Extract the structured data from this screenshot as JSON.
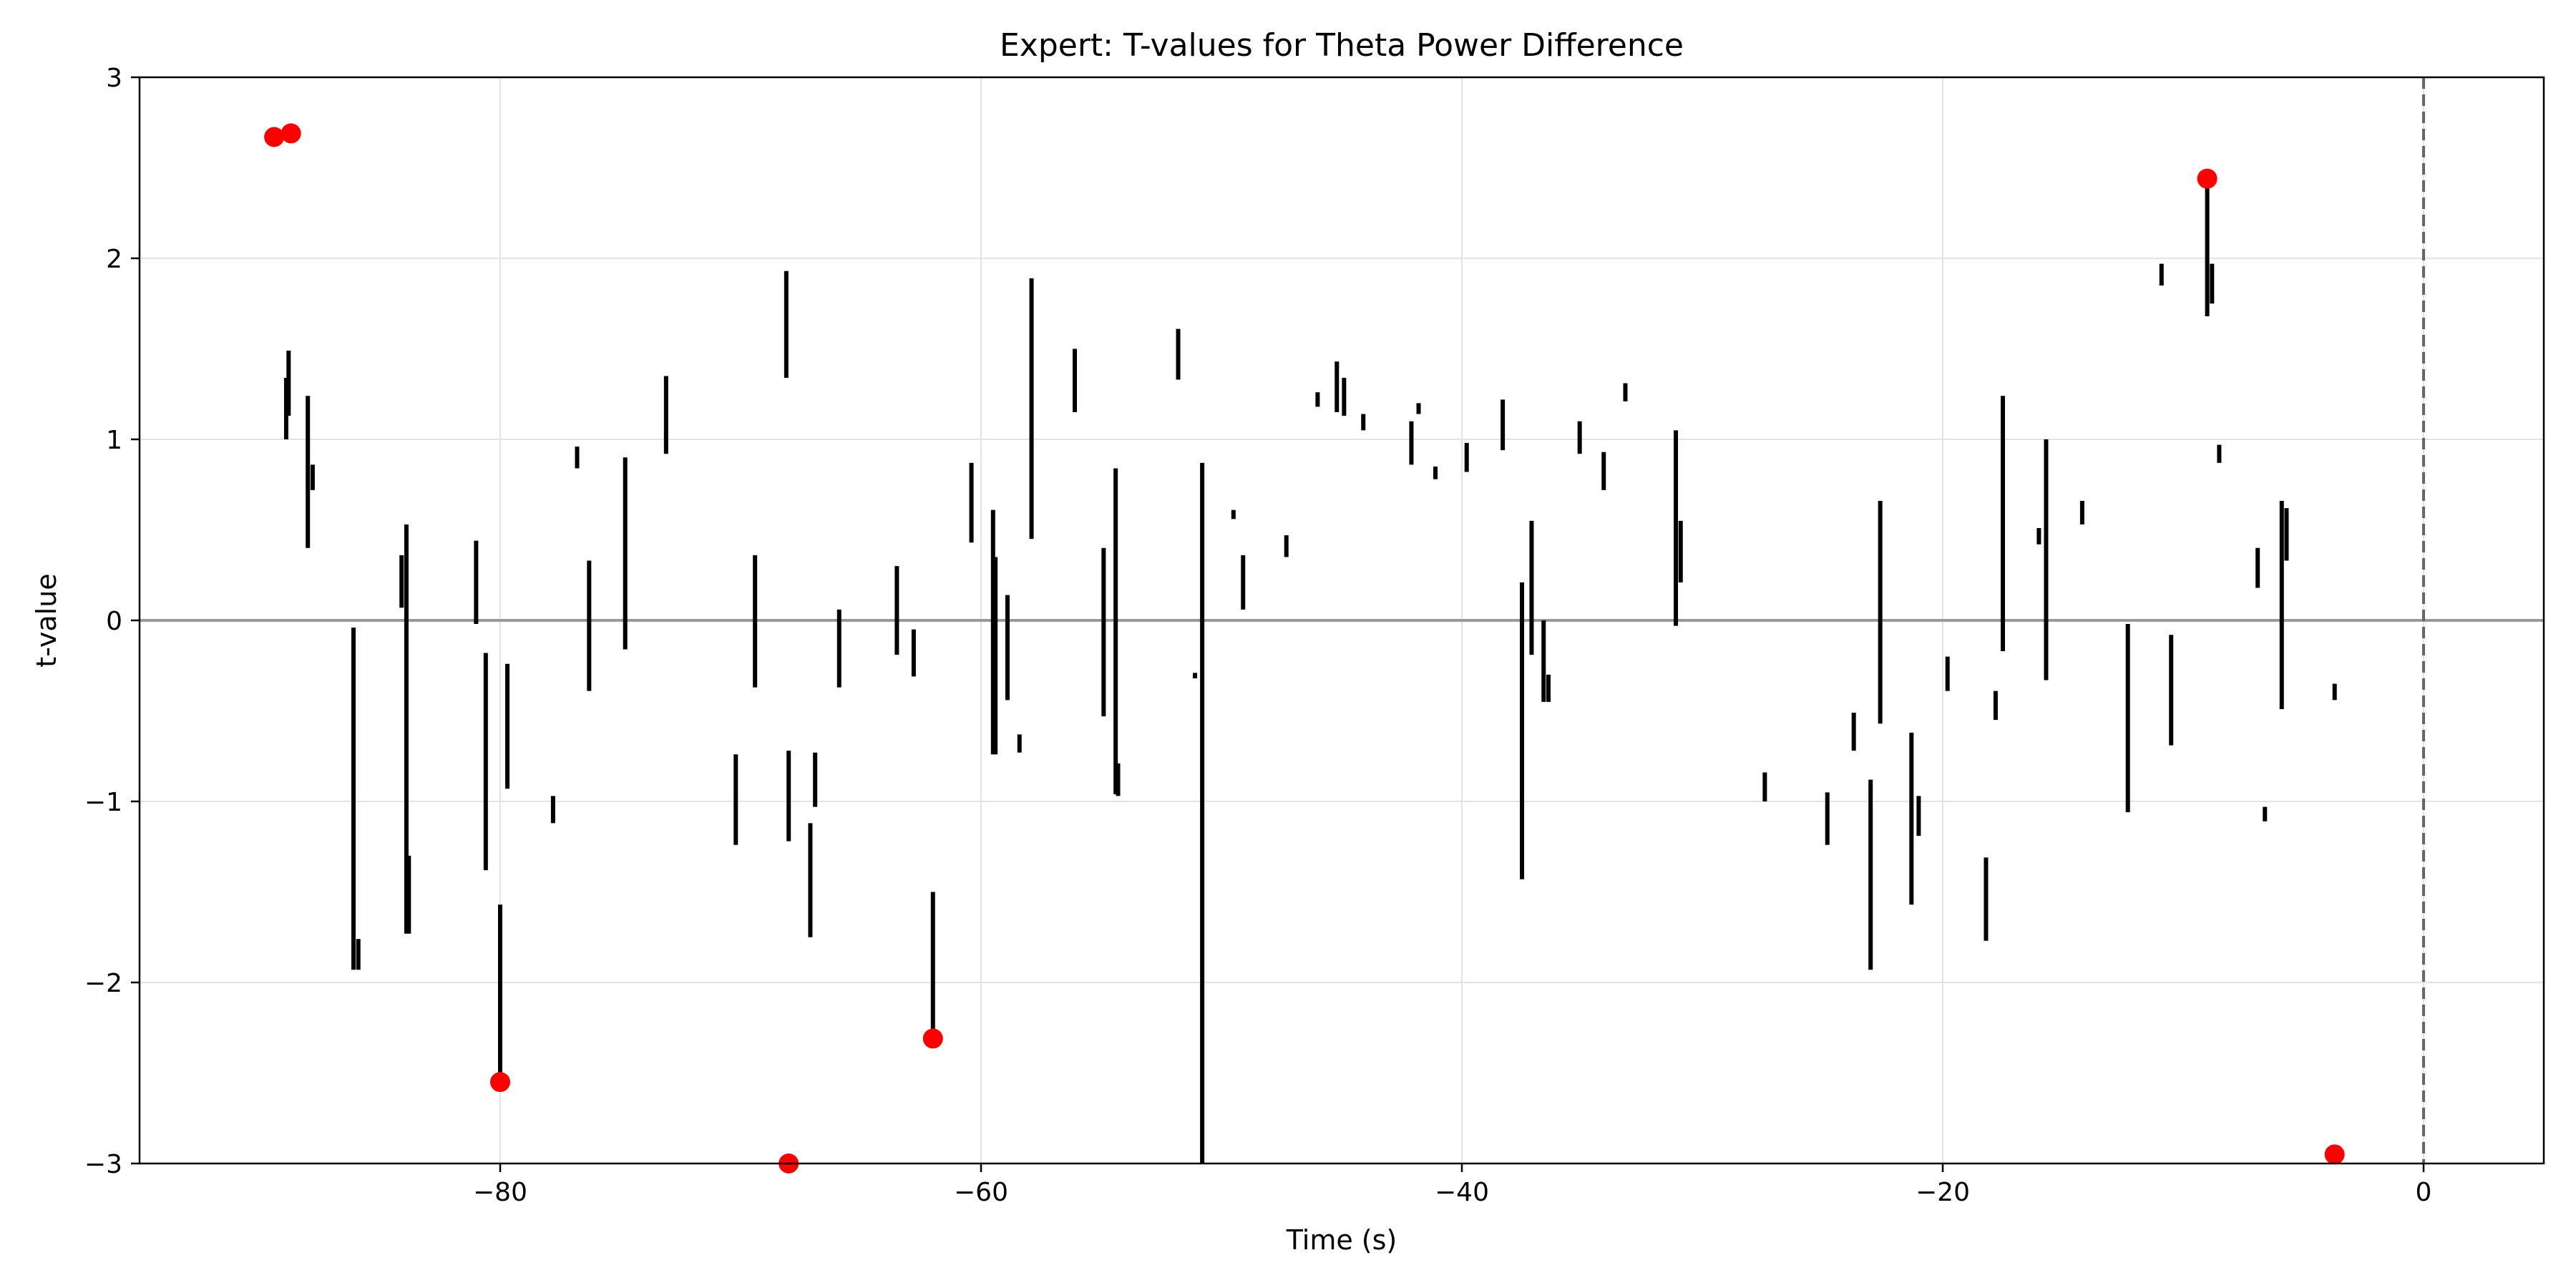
{
  "chart_data": {
    "type": "line",
    "title": "Expert: T-values for Theta Power Difference",
    "xlabel": "Time (s)",
    "ylabel": "t-value",
    "xlim": [
      -95,
      5
    ],
    "ylim": [
      -3,
      3
    ],
    "grid": true,
    "xticks": [
      -80,
      -60,
      -40,
      -20,
      0
    ],
    "xtick_labels": [
      "−80",
      "−60",
      "−40",
      "−20",
      "0"
    ],
    "yticks": [
      -3,
      -2,
      -1,
      0,
      1,
      2,
      3
    ],
    "ytick_labels": [
      "−3",
      "−2",
      "−1",
      "0",
      "1",
      "2",
      "3"
    ],
    "reference_lines": [
      {
        "orientation": "horizontal",
        "value": 0,
        "style": "solid",
        "color": "#999999"
      },
      {
        "orientation": "vertical",
        "value": 0,
        "style": "dashed",
        "color": "#666666"
      }
    ],
    "line_color": "#000000",
    "marker_color": "#ff0000",
    "segments": [
      {
        "x": -88.9,
        "y": [
          1.0,
          1.34
        ]
      },
      {
        "x": -88.8,
        "y": [
          1.13,
          1.49
        ]
      },
      {
        "x": -88.0,
        "y": [
          0.4,
          1.24
        ]
      },
      {
        "x": -87.8,
        "y": [
          0.72,
          0.86
        ]
      },
      {
        "x": -86.1,
        "y": [
          -1.93,
          -0.04
        ]
      },
      {
        "x": -85.9,
        "y": [
          -1.93,
          -1.76
        ]
      },
      {
        "x": -84.1,
        "y": [
          0.07,
          0.36
        ]
      },
      {
        "x": -83.9,
        "y": [
          -1.73,
          0.53
        ]
      },
      {
        "x": -83.8,
        "y": [
          -1.73,
          -1.3
        ]
      },
      {
        "x": -81.0,
        "y": [
          -0.02,
          0.44
        ]
      },
      {
        "x": -80.6,
        "y": [
          -1.38,
          -0.18
        ]
      },
      {
        "x": -80.0,
        "y": [
          -2.55,
          -1.57
        ]
      },
      {
        "x": -79.7,
        "y": [
          -0.93,
          -0.24
        ]
      },
      {
        "x": -77.8,
        "y": [
          -1.12,
          -0.97
        ]
      },
      {
        "x": -76.8,
        "y": [
          0.84,
          0.96
        ]
      },
      {
        "x": -76.3,
        "y": [
          -0.39,
          0.33
        ]
      },
      {
        "x": -74.8,
        "y": [
          -0.16,
          0.9
        ]
      },
      {
        "x": -73.1,
        "y": [
          0.92,
          1.35
        ]
      },
      {
        "x": -70.2,
        "y": [
          -1.24,
          -0.74
        ]
      },
      {
        "x": -69.4,
        "y": [
          -0.37,
          0.36
        ]
      },
      {
        "x": -68.1,
        "y": [
          1.34,
          1.93
        ]
      },
      {
        "x": -68.0,
        "y": [
          -1.22,
          -0.72
        ]
      },
      {
        "x": -67.1,
        "y": [
          -1.75,
          -1.12
        ]
      },
      {
        "x": -66.9,
        "y": [
          -1.03,
          -0.73
        ]
      },
      {
        "x": -65.9,
        "y": [
          -0.37,
          0.06
        ]
      },
      {
        "x": -63.5,
        "y": [
          -0.19,
          0.3
        ]
      },
      {
        "x": -62.8,
        "y": [
          -0.31,
          -0.05
        ]
      },
      {
        "x": -62.0,
        "y": [
          -2.31,
          -1.5
        ]
      },
      {
        "x": -60.4,
        "y": [
          0.43,
          0.87
        ]
      },
      {
        "x": -59.5,
        "y": [
          -0.74,
          0.61
        ]
      },
      {
        "x": -59.4,
        "y": [
          -0.74,
          0.35
        ]
      },
      {
        "x": -58.9,
        "y": [
          -0.44,
          0.14
        ]
      },
      {
        "x": -58.4,
        "y": [
          -0.73,
          -0.63
        ]
      },
      {
        "x": -57.9,
        "y": [
          0.45,
          1.89
        ]
      },
      {
        "x": -56.1,
        "y": [
          1.15,
          1.5
        ]
      },
      {
        "x": -54.9,
        "y": [
          -0.53,
          0.4
        ]
      },
      {
        "x": -54.4,
        "y": [
          -0.96,
          0.84
        ]
      },
      {
        "x": -54.3,
        "y": [
          -0.97,
          -0.79
        ]
      },
      {
        "x": -51.8,
        "y": [
          1.33,
          1.61
        ]
      },
      {
        "x": -51.1,
        "y": [
          -0.32,
          -0.29
        ]
      },
      {
        "x": -50.8,
        "y": [
          -3.0,
          0.87
        ]
      },
      {
        "x": -49.5,
        "y": [
          0.56,
          0.61
        ]
      },
      {
        "x": -49.1,
        "y": [
          0.06,
          0.36
        ]
      },
      {
        "x": -47.3,
        "y": [
          0.35,
          0.47
        ]
      },
      {
        "x": -46.0,
        "y": [
          1.18,
          1.26
        ]
      },
      {
        "x": -45.2,
        "y": [
          1.15,
          1.43
        ]
      },
      {
        "x": -44.9,
        "y": [
          1.13,
          1.34
        ]
      },
      {
        "x": -44.1,
        "y": [
          1.05,
          1.14
        ]
      },
      {
        "x": -42.1,
        "y": [
          0.86,
          1.1
        ]
      },
      {
        "x": -41.8,
        "y": [
          1.14,
          1.2
        ]
      },
      {
        "x": -41.1,
        "y": [
          0.78,
          0.85
        ]
      },
      {
        "x": -39.8,
        "y": [
          0.82,
          0.98
        ]
      },
      {
        "x": -38.3,
        "y": [
          0.94,
          1.22
        ]
      },
      {
        "x": -37.5,
        "y": [
          -1.43,
          0.21
        ]
      },
      {
        "x": -37.1,
        "y": [
          -0.19,
          0.55
        ]
      },
      {
        "x": -36.6,
        "y": [
          -0.45,
          0.0
        ]
      },
      {
        "x": -36.4,
        "y": [
          -0.45,
          -0.3
        ]
      },
      {
        "x": -35.1,
        "y": [
          0.92,
          1.1
        ]
      },
      {
        "x": -34.1,
        "y": [
          0.72,
          0.93
        ]
      },
      {
        "x": -33.2,
        "y": [
          1.21,
          1.31
        ]
      },
      {
        "x": -31.1,
        "y": [
          -0.03,
          1.05
        ]
      },
      {
        "x": -30.9,
        "y": [
          0.21,
          0.55
        ]
      },
      {
        "x": -27.4,
        "y": [
          -1.0,
          -0.84
        ]
      },
      {
        "x": -24.8,
        "y": [
          -1.24,
          -0.95
        ]
      },
      {
        "x": -23.7,
        "y": [
          -0.72,
          -0.51
        ]
      },
      {
        "x": -23.0,
        "y": [
          -1.93,
          -0.88
        ]
      },
      {
        "x": -22.6,
        "y": [
          -0.57,
          0.66
        ]
      },
      {
        "x": -21.3,
        "y": [
          -1.57,
          -0.62
        ]
      },
      {
        "x": -21.0,
        "y": [
          -1.19,
          -0.97
        ]
      },
      {
        "x": -19.8,
        "y": [
          -0.39,
          -0.2
        ]
      },
      {
        "x": -18.2,
        "y": [
          -1.77,
          -1.31
        ]
      },
      {
        "x": -17.8,
        "y": [
          -0.55,
          -0.39
        ]
      },
      {
        "x": -17.5,
        "y": [
          -0.17,
          1.24
        ]
      },
      {
        "x": -16.0,
        "y": [
          0.42,
          0.51
        ]
      },
      {
        "x": -15.7,
        "y": [
          -0.33,
          1.0
        ]
      },
      {
        "x": -14.2,
        "y": [
          0.53,
          0.66
        ]
      },
      {
        "x": -12.3,
        "y": [
          -1.06,
          -0.02
        ]
      },
      {
        "x": -10.5,
        "y": [
          -0.69,
          -0.08
        ]
      },
      {
        "x": -10.9,
        "y": [
          1.85,
          1.97
        ]
      },
      {
        "x": -9.0,
        "y": [
          1.68,
          2.44
        ]
      },
      {
        "x": -8.8,
        "y": [
          1.75,
          1.97
        ]
      },
      {
        "x": -8.5,
        "y": [
          0.87,
          0.97
        ]
      },
      {
        "x": -6.9,
        "y": [
          0.18,
          0.4
        ]
      },
      {
        "x": -6.6,
        "y": [
          -1.11,
          -1.03
        ]
      },
      {
        "x": -5.9,
        "y": [
          -0.49,
          0.66
        ]
      },
      {
        "x": -5.7,
        "y": [
          0.33,
          0.62
        ]
      },
      {
        "x": -3.7,
        "y": [
          -0.44,
          -0.35
        ]
      }
    ],
    "highlighted_points": [
      {
        "x": -89.4,
        "y": 2.67
      },
      {
        "x": -88.7,
        "y": 2.69
      },
      {
        "x": -80.0,
        "y": -2.55
      },
      {
        "x": -68.0,
        "y": -3.0
      },
      {
        "x": -62.0,
        "y": -2.31
      },
      {
        "x": -9.0,
        "y": 2.44
      },
      {
        "x": -3.7,
        "y": -2.95
      }
    ]
  }
}
